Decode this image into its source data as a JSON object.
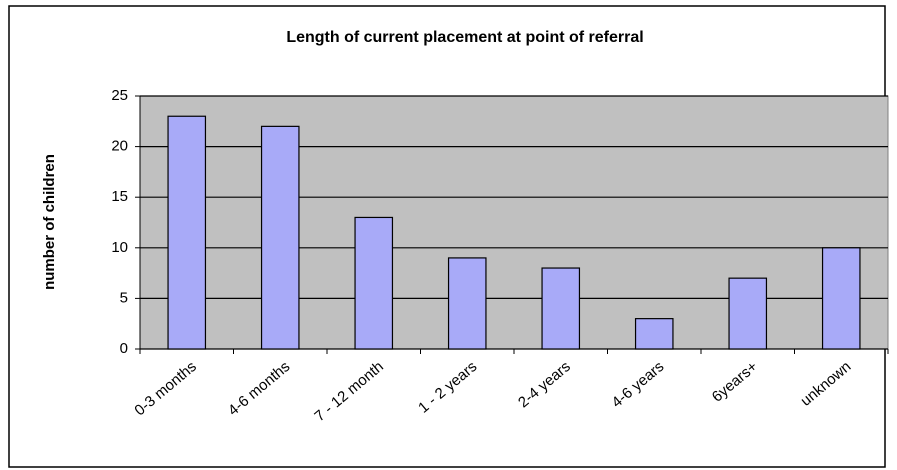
{
  "chart_data": {
    "type": "bar",
    "title": "Length of current placement at point of referral",
    "ylabel": "number of children",
    "categories": [
      "0-3 months",
      "4-6 months",
      "7 - 12 month",
      "1 - 2 years",
      "2-4 years",
      "4-6 years",
      "6years+",
      "unknown"
    ],
    "values": [
      23,
      22,
      13,
      9,
      8,
      3,
      7,
      10
    ],
    "color": "#a8aaf8",
    "ylim": [
      0,
      25
    ],
    "yticks": [
      0,
      5,
      10,
      15,
      20,
      25
    ],
    "grid": true
  }
}
